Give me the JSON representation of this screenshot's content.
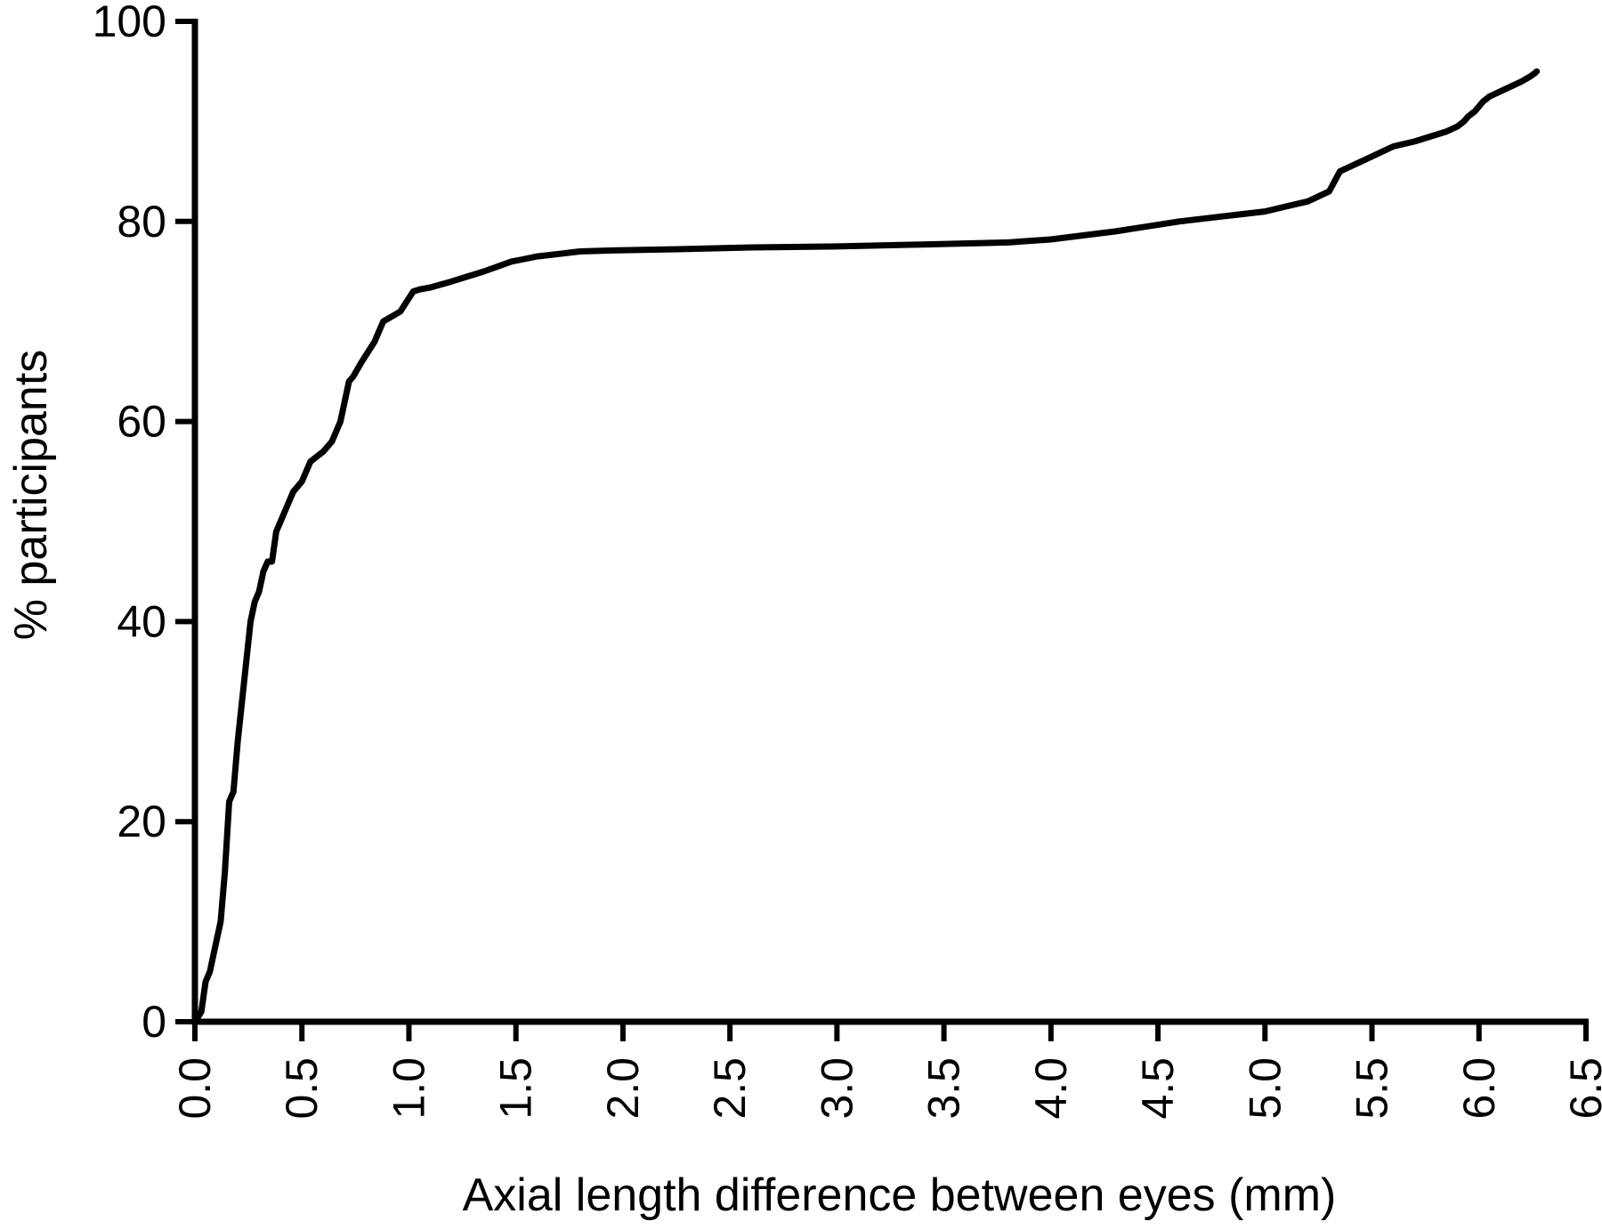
{
  "chart_data": {
    "type": "line",
    "title": "",
    "xlabel": "Axial length difference between eyes (mm)",
    "ylabel": "% participants",
    "xlim": [
      0,
      6.5
    ],
    "ylim": [
      0,
      100
    ],
    "xticks": [
      0.0,
      0.5,
      1.0,
      1.5,
      2.0,
      2.5,
      3.0,
      3.5,
      4.0,
      4.5,
      5.0,
      5.5,
      6.0,
      6.5
    ],
    "xtick_labels": [
      "0.0",
      "0.5",
      "1.0",
      "1.5",
      "2.0",
      "2.5",
      "3.0",
      "3.5",
      "4.0",
      "4.5",
      "5.0",
      "5.5",
      "6.0",
      "6.5"
    ],
    "yticks": [
      0,
      20,
      40,
      60,
      80,
      100
    ],
    "ytick_labels": [
      "0",
      "20",
      "40",
      "60",
      "80",
      "100"
    ],
    "grid": false,
    "legend": "none",
    "line_color": "#000000",
    "series": [
      {
        "x": [
          0.03,
          0.05,
          0.07,
          0.09,
          0.1,
          0.12,
          0.14,
          0.16,
          0.18,
          0.2,
          0.22,
          0.24,
          0.26,
          0.28,
          0.3,
          0.32,
          0.34,
          0.36,
          0.38,
          0.4,
          0.42,
          0.46,
          0.5,
          0.54,
          0.57,
          0.6,
          0.64,
          0.68,
          0.7,
          0.72,
          0.74,
          0.78,
          0.84,
          0.86,
          0.88,
          0.92,
          0.96,
          1.02,
          1.05,
          1.1,
          1.2,
          1.35,
          1.48,
          1.53,
          1.6,
          1.8,
          1.95,
          2.2,
          2.6,
          3.0,
          3.4,
          3.8,
          4.0,
          4.3,
          4.6,
          4.8,
          5.0,
          5.1,
          5.2,
          5.25,
          5.3,
          5.35,
          5.45,
          5.6,
          5.7,
          5.85,
          5.9,
          5.93,
          5.95,
          5.98,
          6.0,
          6.02,
          6.05,
          6.1,
          6.2,
          6.24,
          6.26,
          6.27
        ],
        "y": [
          1,
          4,
          5,
          7,
          8,
          10,
          15,
          22,
          23,
          28,
          32,
          36,
          40,
          42,
          43,
          45,
          46,
          46,
          49,
          50,
          51,
          53,
          54,
          56,
          56.5,
          57,
          58,
          60,
          62,
          64,
          64.5,
          66,
          68,
          69,
          70,
          70.5,
          71,
          73,
          73.2,
          73.4,
          74,
          75,
          76,
          76.2,
          76.5,
          77,
          77.1,
          77.2,
          77.4,
          77.5,
          77.7,
          77.9,
          78.2,
          79,
          80,
          80.5,
          81,
          81.5,
          82,
          82.5,
          83,
          85,
          86,
          87.5,
          88,
          89,
          89.5,
          90,
          90.5,
          91,
          91.5,
          92,
          92.5,
          93,
          94,
          94.5,
          94.8,
          95
        ]
      }
    ]
  }
}
